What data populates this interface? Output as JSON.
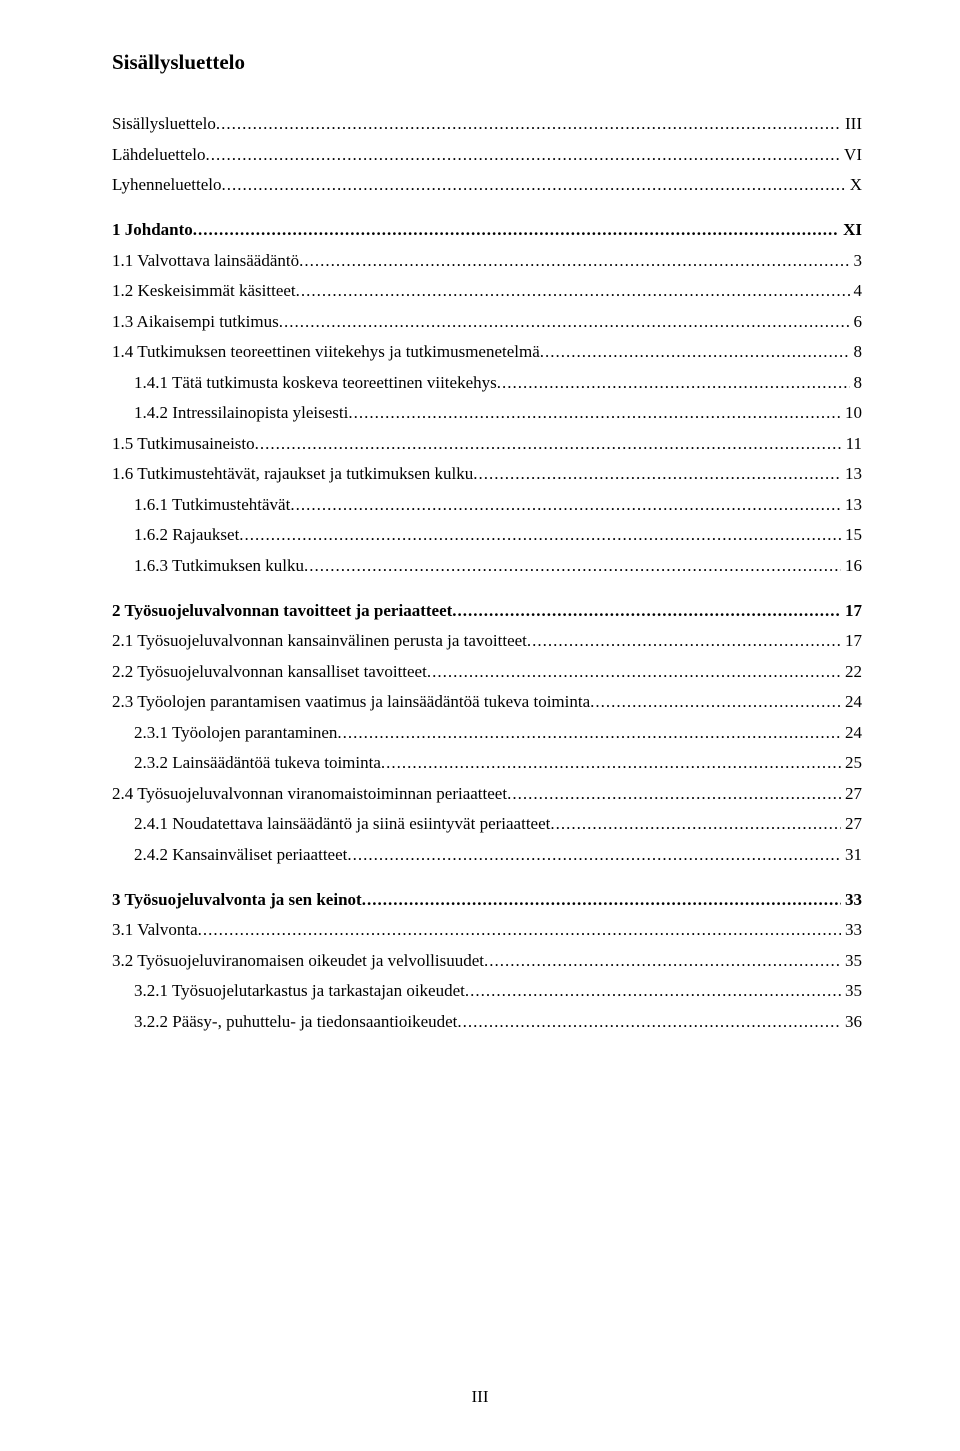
{
  "title": "Sisällysluettelo",
  "pageNumber": "III",
  "sections": [
    {
      "heading": null,
      "entries": [
        {
          "level": 0,
          "label": "Sisällysluettelo",
          "page": "III"
        },
        {
          "level": 0,
          "label": "Lähdeluettelo",
          "page": "VI"
        },
        {
          "level": 0,
          "label": "Lyhenneluettelo",
          "page": "X"
        }
      ]
    },
    {
      "heading": null,
      "entries": [
        {
          "level": 0,
          "bold": true,
          "label": "1 Johdanto",
          "page": "XI"
        },
        {
          "level": 0,
          "label": "1.1 Valvottava lainsäädäntö",
          "page": "3"
        },
        {
          "level": 0,
          "label": "1.2 Keskeisimmät käsitteet",
          "page": "4"
        },
        {
          "level": 0,
          "label": "1.3 Aikaisempi tutkimus",
          "page": "6"
        },
        {
          "level": 0,
          "label": "1.4 Tutkimuksen teoreettinen viitekehys ja tutkimusmenetelmä",
          "page": "8"
        },
        {
          "level": 1,
          "label": "1.4.1 Tätä tutkimusta koskeva teoreettinen viitekehys",
          "page": "8"
        },
        {
          "level": 1,
          "label": "1.4.2 Intressilainopista yleisesti",
          "page": "10"
        },
        {
          "level": 0,
          "label": "1.5 Tutkimusaineisto",
          "page": "11"
        },
        {
          "level": 0,
          "label": "1.6 Tutkimustehtävät, rajaukset ja tutkimuksen kulku",
          "page": "13"
        },
        {
          "level": 1,
          "label": "1.6.1 Tutkimustehtävät",
          "page": "13"
        },
        {
          "level": 1,
          "label": "1.6.2 Rajaukset",
          "page": "15"
        },
        {
          "level": 1,
          "label": "1.6.3 Tutkimuksen kulku",
          "page": "16"
        }
      ]
    },
    {
      "heading": null,
      "entries": [
        {
          "level": 0,
          "bold": true,
          "label": "2 Työsuojeluvalvonnan tavoitteet ja periaatteet",
          "page": "17"
        },
        {
          "level": 0,
          "label": "2.1 Työsuojeluvalvonnan kansainvälinen perusta ja tavoitteet",
          "page": "17"
        },
        {
          "level": 0,
          "label": "2.2 Työsuojeluvalvonnan kansalliset tavoitteet",
          "page": "22"
        },
        {
          "level": 0,
          "label": "2.3 Työolojen parantamisen vaatimus ja lainsäädäntöä tukeva toiminta",
          "page": "24"
        },
        {
          "level": 1,
          "label": "2.3.1 Työolojen parantaminen",
          "page": "24"
        },
        {
          "level": 1,
          "label": "2.3.2 Lainsäädäntöä tukeva toiminta",
          "page": "25"
        },
        {
          "level": 0,
          "label": "2.4 Työsuojeluvalvonnan viranomaistoiminnan periaatteet",
          "page": "27"
        },
        {
          "level": 1,
          "label": "2.4.1 Noudatettava lainsäädäntö ja siinä esiintyvät periaatteet",
          "page": "27"
        },
        {
          "level": 1,
          "label": "2.4.2 Kansainväliset periaatteet",
          "page": "31"
        }
      ]
    },
    {
      "heading": null,
      "entries": [
        {
          "level": 0,
          "bold": true,
          "label": "3 Työsuojeluvalvonta ja sen keinot",
          "page": "33"
        },
        {
          "level": 0,
          "label": "3.1 Valvonta",
          "page": "33"
        },
        {
          "level": 0,
          "label": "3.2 Työsuojeluviranomaisen oikeudet ja velvollisuudet",
          "page": "35"
        },
        {
          "level": 1,
          "label": "3.2.1 Työsuojelutarkastus ja tarkastajan oikeudet",
          "page": "35"
        },
        {
          "level": 1,
          "label": "3.2.2 Pääsy-, puhuttelu- ja tiedonsaantioikeudet",
          "page": "36"
        }
      ]
    }
  ]
}
